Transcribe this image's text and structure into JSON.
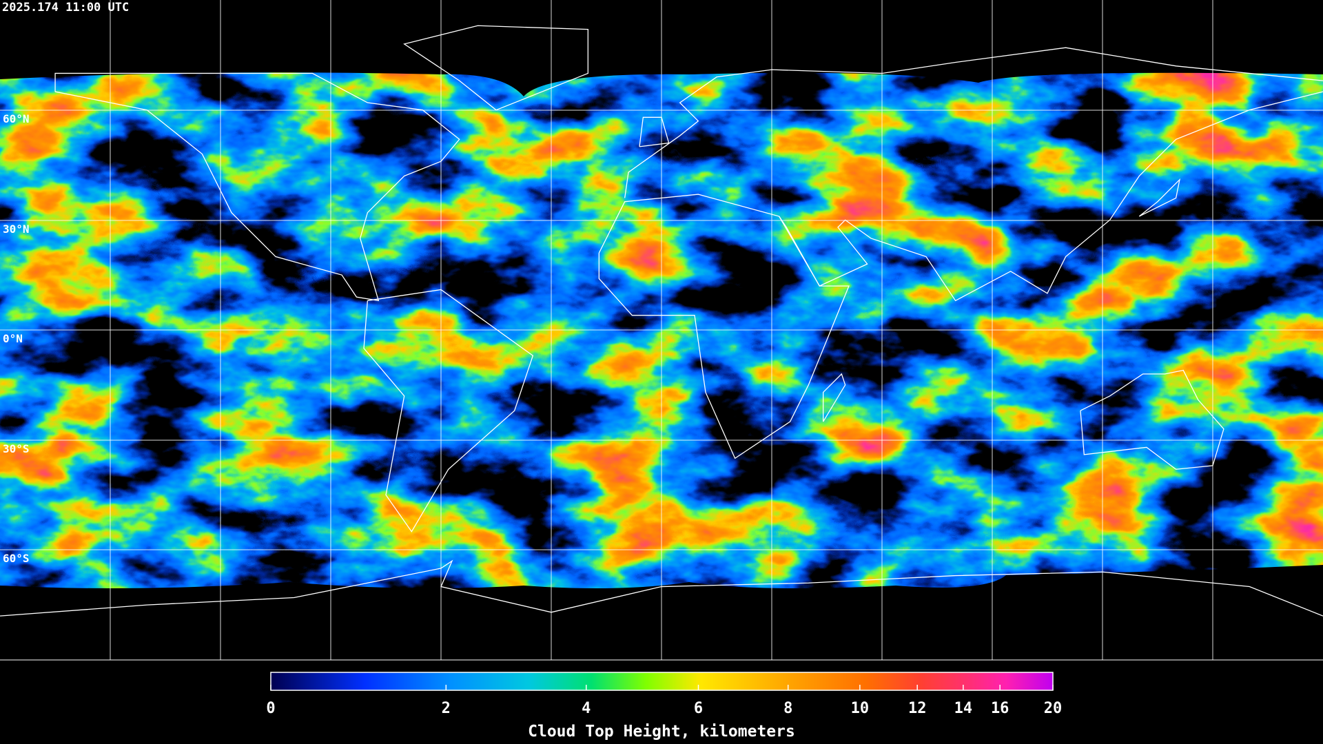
{
  "header": {
    "timestamp": "2025.174 11:00 UTC"
  },
  "map": {
    "lat_labels": [
      "60°N",
      "30°N",
      "0°N",
      "30°S",
      "60°S"
    ]
  },
  "colorbar": {
    "title": "Cloud Top Height, kilometers",
    "lim": [
      0,
      20
    ],
    "ticks": [
      0,
      2,
      4,
      6,
      8,
      10,
      12,
      14,
      16,
      20
    ]
  }
}
